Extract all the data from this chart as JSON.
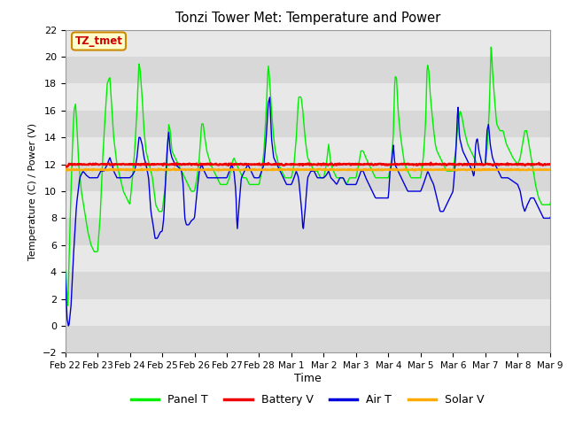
{
  "title": "Tonzi Tower Met: Temperature and Power",
  "xlabel": "Time",
  "ylabel": "Temperature (C) / Power (V)",
  "ylim": [
    -2,
    22
  ],
  "yticks": [
    -2,
    0,
    2,
    4,
    6,
    8,
    10,
    12,
    14,
    16,
    18,
    20,
    22
  ],
  "legend_label": "TZ_tmet",
  "series": {
    "panel_t_color": "#00ee00",
    "battery_v_color": "#ee0000",
    "air_t_color": "#0000dd",
    "solar_v_color": "#ffaa00"
  },
  "tick_labels": [
    "Feb 22",
    "Feb 23",
    "Feb 24",
    "Feb 25",
    "Feb 26",
    "Feb 27",
    "Feb 28",
    "Mar 1",
    "Mar 2",
    "Mar 3",
    "Mar 4",
    "Mar 5",
    "Mar 6",
    "Mar 7",
    "Mar 8",
    "Mar 9"
  ],
  "battery_v_level": 12.0,
  "solar_v_level": 11.6,
  "n_points": 800
}
